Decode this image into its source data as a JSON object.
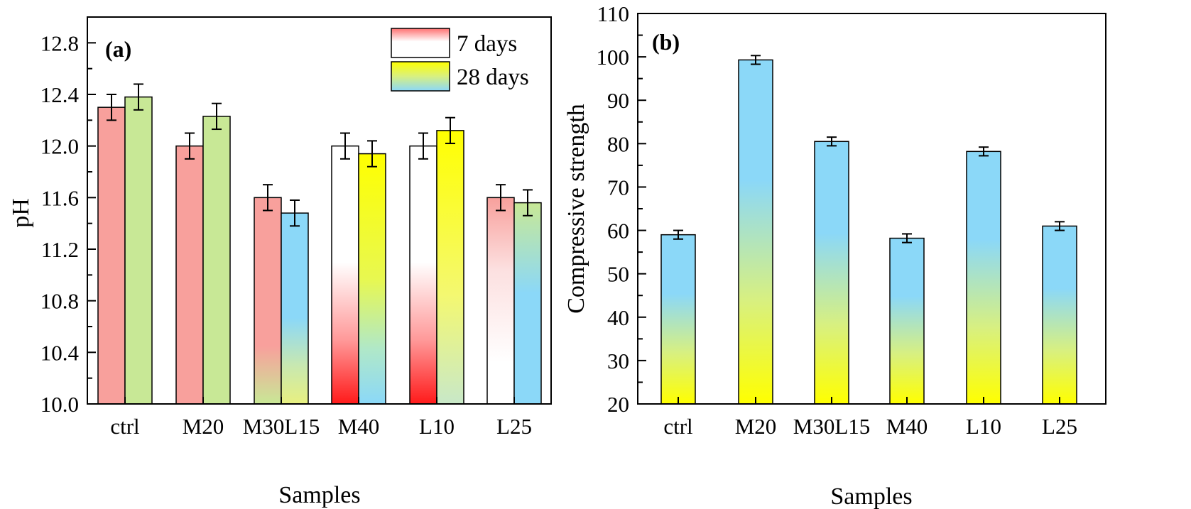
{
  "chart_data": [
    {
      "type": "bar",
      "panel_label": "(a)",
      "title": "",
      "xlabel": "Samples",
      "ylabel": "pH",
      "ylim": [
        10.0,
        13.0
      ],
      "yticks": [
        "10.0",
        "10.4",
        "10.8",
        "11.2",
        "11.6",
        "12.0",
        "12.4",
        "12.8"
      ],
      "categories": [
        "ctrl",
        "M20",
        "M30L15",
        "M40",
        "L10",
        "L25"
      ],
      "legend_position": "top-right",
      "series": [
        {
          "name": "7 days",
          "values": [
            12.3,
            12.0,
            11.6,
            12.0,
            12.0,
            11.6
          ],
          "errors": [
            0.1,
            0.1,
            0.1,
            0.1,
            0.1,
            0.1
          ]
        },
        {
          "name": "28 days",
          "values": [
            12.38,
            12.23,
            11.48,
            11.94,
            12.12,
            11.56
          ],
          "errors": [
            0.1,
            0.1,
            0.1,
            0.1,
            0.1,
            0.1
          ]
        }
      ]
    },
    {
      "type": "bar",
      "panel_label": "(b)",
      "title": "",
      "xlabel": "Samples",
      "ylabel": "Compressive strength",
      "ylim": [
        20,
        110
      ],
      "yticks": [
        "20",
        "30",
        "40",
        "50",
        "60",
        "70",
        "80",
        "90",
        "100",
        "110"
      ],
      "categories": [
        "ctrl",
        "M20",
        "M30L15",
        "M40",
        "L10",
        "L25"
      ],
      "series": [
        {
          "name": "Compressive strength",
          "values": [
            59.0,
            99.3,
            80.5,
            58.2,
            78.2,
            61.0
          ],
          "errors": [
            1.0,
            1.0,
            1.0,
            1.0,
            1.0,
            1.0
          ]
        }
      ]
    }
  ],
  "colors": {
    "bar_edge": "#000000",
    "pink": "#F8A09C",
    "green": "#C8E896",
    "red": "#FF2020",
    "white": "#FFFFFF",
    "yellow": "#FFFF00",
    "blue": "#8BD8F8"
  }
}
